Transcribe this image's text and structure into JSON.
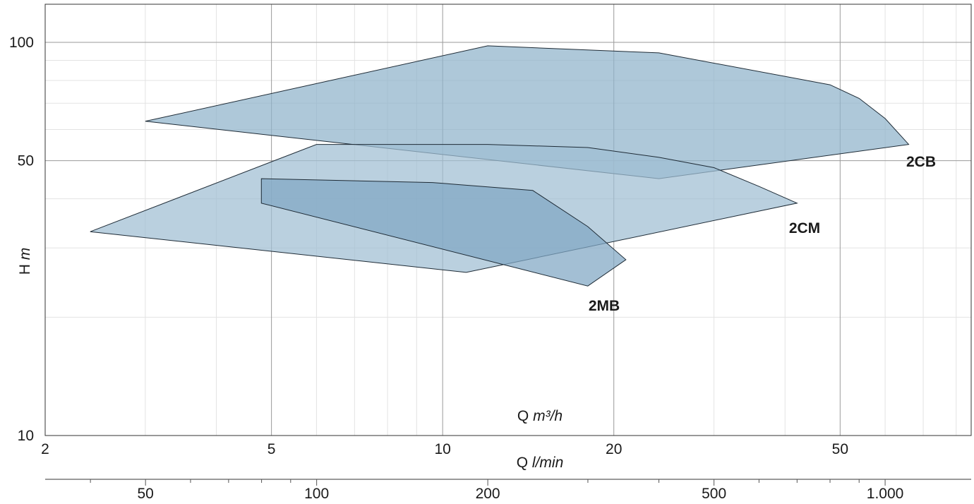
{
  "chart_data": {
    "type": "area",
    "xscale": "log",
    "yscale": "log",
    "grid": true,
    "x_unit_prefix": "Q ",
    "x_unit": "m³/h",
    "x2_unit_prefix": "Q ",
    "x2_unit": "l/min",
    "y_unit_prefix": "H ",
    "y_unit": "m",
    "xlim": [
      2,
      85
    ],
    "ylim": [
      10,
      125
    ],
    "x2lim": [
      33.3,
      1417
    ],
    "x_ticks": [
      {
        "value": 2,
        "label": "2"
      },
      {
        "value": 5,
        "label": "5"
      },
      {
        "value": 10,
        "label": "10"
      },
      {
        "value": 20,
        "label": "20"
      },
      {
        "value": 50,
        "label": "50"
      }
    ],
    "y_ticks": [
      {
        "value": 10,
        "label": "10"
      },
      {
        "value": 50,
        "label": "50"
      },
      {
        "value": 100,
        "label": "100"
      }
    ],
    "x2_ticks": [
      {
        "value": 50,
        "label": "50"
      },
      {
        "value": 100,
        "label": "100"
      },
      {
        "value": 200,
        "label": "200"
      },
      {
        "value": 500,
        "label": "500"
      },
      {
        "value": 1000,
        "label": "1.000"
      }
    ],
    "series": [
      {
        "name": "2CB",
        "color": "#8fb3cb",
        "points": [
          [
            3,
            63
          ],
          [
            12,
            98
          ],
          [
            24,
            94
          ],
          [
            48,
            78
          ],
          [
            54,
            72
          ],
          [
            60,
            64
          ],
          [
            66,
            55
          ],
          [
            24,
            45
          ],
          [
            3,
            63
          ]
        ]
      },
      {
        "name": "2CM",
        "color": "#9fbed3",
        "points": [
          [
            6,
            55
          ],
          [
            12,
            55
          ],
          [
            18,
            54
          ],
          [
            24,
            51
          ],
          [
            30,
            48
          ],
          [
            36,
            43
          ],
          [
            42,
            39
          ],
          [
            11,
            26
          ],
          [
            2.4,
            33
          ],
          [
            6,
            55
          ]
        ]
      },
      {
        "name": "2MB",
        "color": "#7fa6c3",
        "points": [
          [
            4.8,
            45
          ],
          [
            9.6,
            44
          ],
          [
            14.4,
            42
          ],
          [
            18,
            34
          ],
          [
            21,
            28
          ],
          [
            18,
            24
          ],
          [
            4.8,
            39
          ],
          [
            4.8,
            45
          ]
        ]
      }
    ]
  }
}
